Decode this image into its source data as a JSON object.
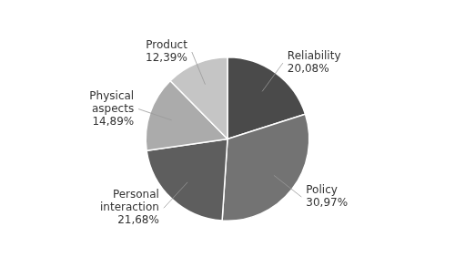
{
  "chart_data": {
    "type": "pie",
    "categories": [
      "Reliability",
      "Policy",
      "Personal\ninteraction",
      "Physical\naspects",
      "Product"
    ],
    "values": [
      20.08,
      30.97,
      21.68,
      14.89,
      12.39
    ],
    "value_labels": [
      "20,08%",
      "30,97%",
      "21,68%",
      "14,89%",
      "12,39%"
    ],
    "colors": [
      "#4a4a4a",
      "#737373",
      "#5e5e5e",
      "#ababab",
      "#c5c5c5"
    ],
    "data_labels": true,
    "legend": false
  }
}
